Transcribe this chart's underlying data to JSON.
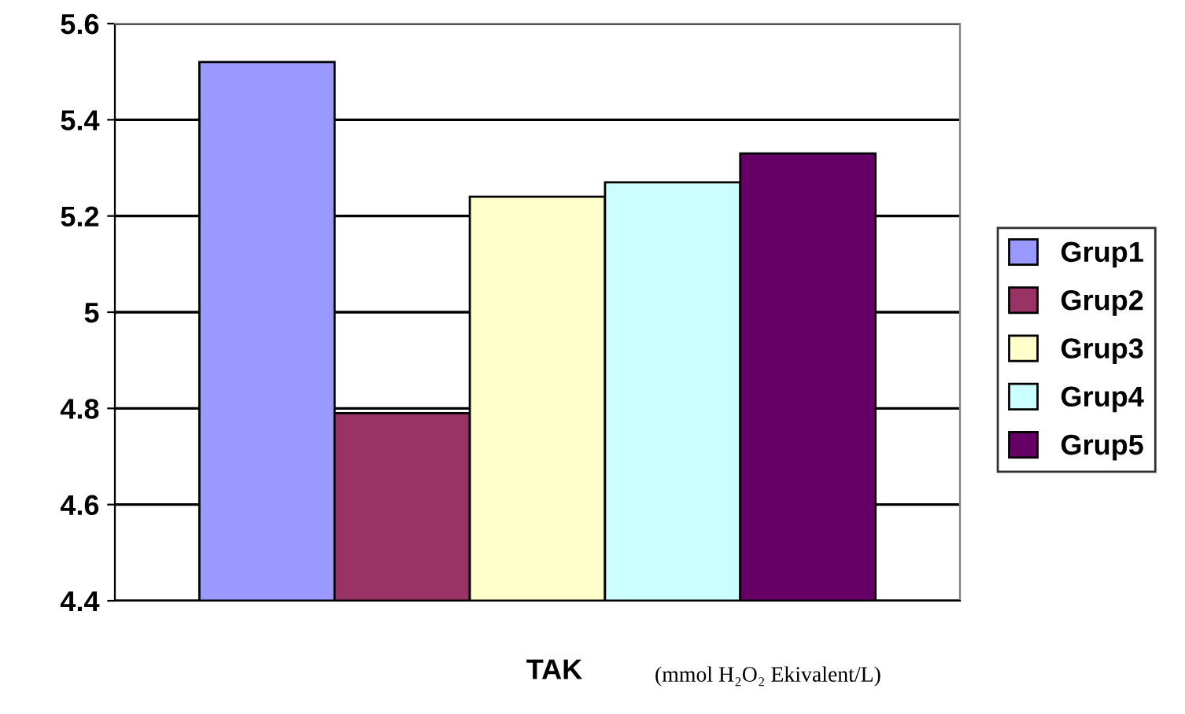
{
  "chart_data": {
    "type": "bar",
    "xlabel": "TAK",
    "annotations": [
      "(mmol H₂O₂ Ekivalent/L)"
    ],
    "categories": [
      null
    ],
    "series": [
      {
        "name": "Grup1",
        "color": "#9999ff",
        "values": [
          5.52
        ]
      },
      {
        "name": "Grup2",
        "color": "#993366",
        "values": [
          4.79
        ]
      },
      {
        "name": "Grup3",
        "color": "#ffffcc",
        "values": [
          5.24
        ]
      },
      {
        "name": "Grup4",
        "color": "#ccffff",
        "values": [
          5.27
        ]
      },
      {
        "name": "Grup5",
        "color": "#660066",
        "values": [
          5.33
        ]
      }
    ],
    "ylim": [
      4.4,
      5.6
    ],
    "yticks": [
      4.4,
      4.6,
      4.8,
      5,
      5.2,
      5.4,
      5.6
    ],
    "grid": "y",
    "legend": "right"
  }
}
